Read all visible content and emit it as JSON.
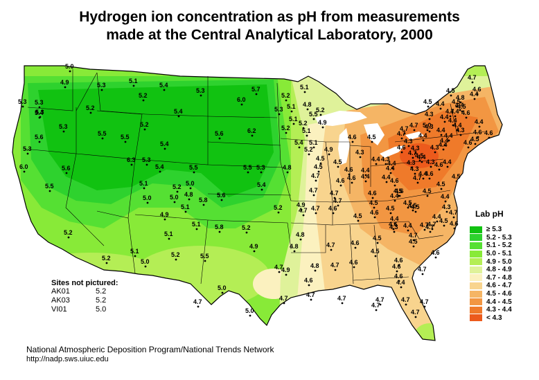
{
  "title": {
    "line1": "Hydrogen ion concentration as pH from measurements",
    "line2": "made at the Central Analytical Laboratory, 2000"
  },
  "legend": {
    "title": "Lab pH",
    "items": [
      {
        "label": "≥ 5.3",
        "color": "#11c211"
      },
      {
        "label": "5.2 - 5.3",
        "color": "#2ed22e"
      },
      {
        "label": "5.1 - 5.2",
        "color": "#55e033"
      },
      {
        "label": "5.0 - 5.1",
        "color": "#88ea38"
      },
      {
        "label": "4.9 - 5.0",
        "color": "#b4ee55"
      },
      {
        "label": "4.8 - 4.9",
        "color": "#dff29a"
      },
      {
        "label": "4.7 - 4.8",
        "color": "#fbf1bf"
      },
      {
        "label": "4.6 - 4.7",
        "color": "#f8d48e"
      },
      {
        "label": "4.5 - 4.6",
        "color": "#f5b565"
      },
      {
        "label": "4.4 - 4.5",
        "color": "#f29642"
      },
      {
        "label": "4.3 - 4.4",
        "color": "#ef7a2a"
      },
      {
        "label": "< 4.3",
        "color": "#ec5a1c"
      }
    ]
  },
  "sites_not_pictured": {
    "heading": "Sites not pictured:",
    "rows": [
      {
        "id": "AK01",
        "value": "5.2"
      },
      {
        "id": "AK03",
        "value": "5.2"
      },
      {
        "id": "VI01",
        "value": "5.0"
      }
    ]
  },
  "footer": {
    "line1": "National Atmospheric Deposition Program/National Trends Network",
    "line2": "http://nadp.sws.uiuc.edu"
  },
  "sites": [
    {
      "v": "5.0"
    },
    {
      "v": "4.9"
    },
    {
      "v": "5.3"
    },
    {
      "v": "5.1"
    },
    {
      "v": "5.4"
    },
    {
      "v": "5.3"
    },
    {
      "v": "5.7"
    },
    {
      "v": "5.2"
    },
    {
      "v": "5.1"
    },
    {
      "v": "5.3"
    },
    {
      "v": "5.3"
    },
    {
      "v": "5.2"
    },
    {
      "v": "5.2"
    },
    {
      "v": "5.4"
    },
    {
      "v": "6.0"
    },
    {
      "v": "5.1"
    },
    {
      "v": "4.8"
    },
    {
      "v": "5.2"
    },
    {
      "v": "5.3"
    },
    {
      "v": "5.3"
    },
    {
      "v": "5.4"
    },
    {
      "v": "5.5"
    },
    {
      "v": "5.5"
    },
    {
      "v": "5.6"
    },
    {
      "v": "6.2"
    },
    {
      "v": "5.3"
    },
    {
      "v": "5.1"
    },
    {
      "v": "5.2"
    },
    {
      "v": "4.9"
    },
    {
      "v": "5.4"
    },
    {
      "v": "5.2"
    },
    {
      "v": "5.5"
    },
    {
      "v": "5.6"
    },
    {
      "v": "5.2"
    },
    {
      "v": "5.3"
    },
    {
      "v": "5.1"
    },
    {
      "v": "5.4"
    },
    {
      "v": "5.1"
    },
    {
      "v": "6.3"
    },
    {
      "v": "5.3"
    },
    {
      "v": "5.6"
    },
    {
      "v": "6.0"
    },
    {
      "v": "5.5"
    },
    {
      "v": "5.5"
    },
    {
      "v": "5.5"
    },
    {
      "v": "5.3"
    },
    {
      "v": "4.8"
    },
    {
      "v": "4.9"
    },
    {
      "v": "5.2"
    },
    {
      "v": "5.4"
    },
    {
      "v": "5.1"
    },
    {
      "v": "5.2"
    },
    {
      "v": "5.0"
    },
    {
      "v": "5.0"
    },
    {
      "v": "4.8"
    },
    {
      "v": "5.6"
    },
    {
      "v": "5.4"
    },
    {
      "v": "5.0"
    },
    {
      "v": "5.1"
    },
    {
      "v": "5.8"
    },
    {
      "v": "4.9"
    },
    {
      "v": "5.2"
    },
    {
      "v": "4.9"
    },
    {
      "v": "5.1"
    },
    {
      "v": "5.8"
    },
    {
      "v": "5.2"
    },
    {
      "v": "4.8"
    },
    {
      "v": "5.2"
    },
    {
      "v": "5.1"
    },
    {
      "v": "4.8"
    },
    {
      "v": "5.1"
    },
    {
      "v": "4.9"
    },
    {
      "v": "5.5"
    },
    {
      "v": "5.2"
    },
    {
      "v": "5.2"
    },
    {
      "v": "5.0"
    },
    {
      "v": "4.7"
    },
    {
      "v": "4.9"
    },
    {
      "v": "5.0"
    },
    {
      "v": "5.0"
    },
    {
      "v": "4.7"
    },
    {
      "v": "4.7"
    },
    {
      "v": "4.7"
    },
    {
      "v": "4.6"
    },
    {
      "v": "4.7"
    },
    {
      "v": "4.7"
    },
    {
      "v": "4.7"
    },
    {
      "v": "4.6"
    },
    {
      "v": "4.8"
    },
    {
      "v": "4.7"
    },
    {
      "v": "4.6"
    },
    {
      "v": "4.7"
    },
    {
      "v": "4.6"
    },
    {
      "v": "4.5"
    },
    {
      "v": "4.7"
    },
    {
      "v": "4.6"
    },
    {
      "v": "4.6"
    },
    {
      "v": "4.7"
    },
    {
      "v": "4.5"
    },
    {
      "v": "4.5"
    },
    {
      "v": "4.6"
    },
    {
      "v": "4.4"
    },
    {
      "v": "4.4"
    },
    {
      "v": "4.4"
    },
    {
      "v": "4.7"
    },
    {
      "v": "4.3"
    },
    {
      "v": "4.4"
    },
    {
      "v": "4.4"
    },
    {
      "v": "4.6"
    },
    {
      "v": "4.5"
    },
    {
      "v": "4.3"
    },
    {
      "v": "4.3"
    },
    {
      "v": "4.5"
    },
    {
      "v": "4.4"
    },
    {
      "v": "4.6"
    },
    {
      "v": "4.4"
    },
    {
      "v": "4.7"
    },
    {
      "v": "4.4"
    },
    {
      "v": "4.4"
    },
    {
      "v": "4.4"
    },
    {
      "v": "4.5"
    },
    {
      "v": "4.6"
    },
    {
      "v": "4.6"
    },
    {
      "v": "4.5"
    },
    {
      "v": "4.6"
    },
    {
      "v": "4.7"
    },
    {
      "v": "4.6"
    },
    {
      "v": "4.6"
    },
    {
      "v": "4.5"
    },
    {
      "v": "4.7"
    },
    {
      "v": "4.7"
    },
    {
      "v": "4.6"
    },
    {
      "v": "4.6"
    },
    {
      "v": "4.7"
    },
    {
      "v": "4.7"
    },
    {
      "v": "4.5"
    },
    {
      "v": "4.5"
    },
    {
      "v": "4.7"
    },
    {
      "v": "4.5"
    },
    {
      "v": "4.5"
    },
    {
      "v": "4.5"
    },
    {
      "v": "4.7"
    },
    {
      "v": "4.7"
    },
    {
      "v": "4.6"
    },
    {
      "v": "4.7"
    },
    {
      "v": "4.3"
    },
    {
      "v": "4.4"
    },
    {
      "v": "4.3"
    },
    {
      "v": "4.4"
    },
    {
      "v": "4.3"
    },
    {
      "v": "4.3"
    },
    {
      "v": "4.4"
    },
    {
      "v": "4.3"
    },
    {
      "v": "4.3"
    },
    {
      "v": "4.4"
    },
    {
      "v": "4.4"
    },
    {
      "v": "4.3"
    },
    {
      "v": "4.3"
    },
    {
      "v": "4.4"
    },
    {
      "v": "4.4"
    },
    {
      "v": "4.4"
    },
    {
      "v": "4.4"
    },
    {
      "v": "4.3"
    },
    {
      "v": "4.5"
    },
    {
      "v": "4.4"
    },
    {
      "v": "4.6"
    },
    {
      "v": "4.4"
    },
    {
      "v": "4.6"
    },
    {
      "v": "4.6"
    },
    {
      "v": "4.5"
    },
    {
      "v": "4.6"
    },
    {
      "v": "4.5"
    },
    {
      "v": "4.5"
    },
    {
      "v": "4.8"
    },
    {
      "v": "4.7"
    },
    {
      "v": "4.6"
    },
    {
      "v": "4.4"
    },
    {
      "v": "4.5"
    },
    {
      "v": "4.4"
    },
    {
      "v": "4.7"
    },
    {
      "v": "4.4"
    },
    {
      "v": "4.4"
    },
    {
      "v": "4.4"
    },
    {
      "v": "4.5"
    },
    {
      "v": "4.5"
    },
    {
      "v": "4.4"
    },
    {
      "v": "4.3"
    },
    {
      "v": "4.4"
    },
    {
      "v": "4.7"
    },
    {
      "v": "4.6"
    },
    {
      "v": "4.5"
    },
    {
      "v": "4.6"
    },
    {
      "v": "4.7"
    },
    {
      "v": "4.5"
    },
    {
      "v": "4.5"
    },
    {
      "v": "4.7"
    },
    {
      "v": "4.6"
    },
    {
      "v": "4.6"
    },
    {
      "v": "4.7"
    },
    {
      "v": "4.5"
    },
    {
      "v": "4.7"
    },
    {
      "v": "4.7"
    },
    {
      "v": "4.7"
    },
    {
      "v": "5.0"
    }
  ]
}
